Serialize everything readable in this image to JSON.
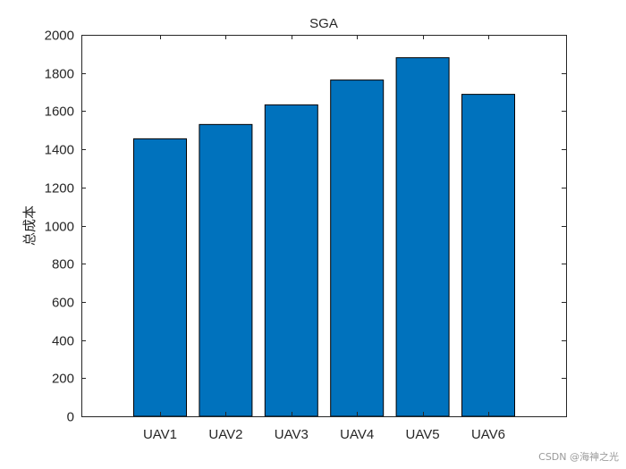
{
  "chart_data": {
    "type": "bar",
    "title": "SGA",
    "xlabel": "",
    "ylabel": "总成本",
    "categories": [
      "UAV1",
      "UAV2",
      "UAV3",
      "UAV4",
      "UAV5",
      "UAV6"
    ],
    "values": [
      1455,
      1530,
      1633,
      1763,
      1880,
      1688
    ],
    "ylim": [
      0,
      2000
    ],
    "yticks": [
      0,
      200,
      400,
      600,
      800,
      1000,
      1200,
      1400,
      1600,
      1800,
      2000
    ],
    "grid": false,
    "legend": "none",
    "bar_color": "#0072BD",
    "edge_color": "#000000"
  },
  "watermark": "CSDN @海神之光"
}
